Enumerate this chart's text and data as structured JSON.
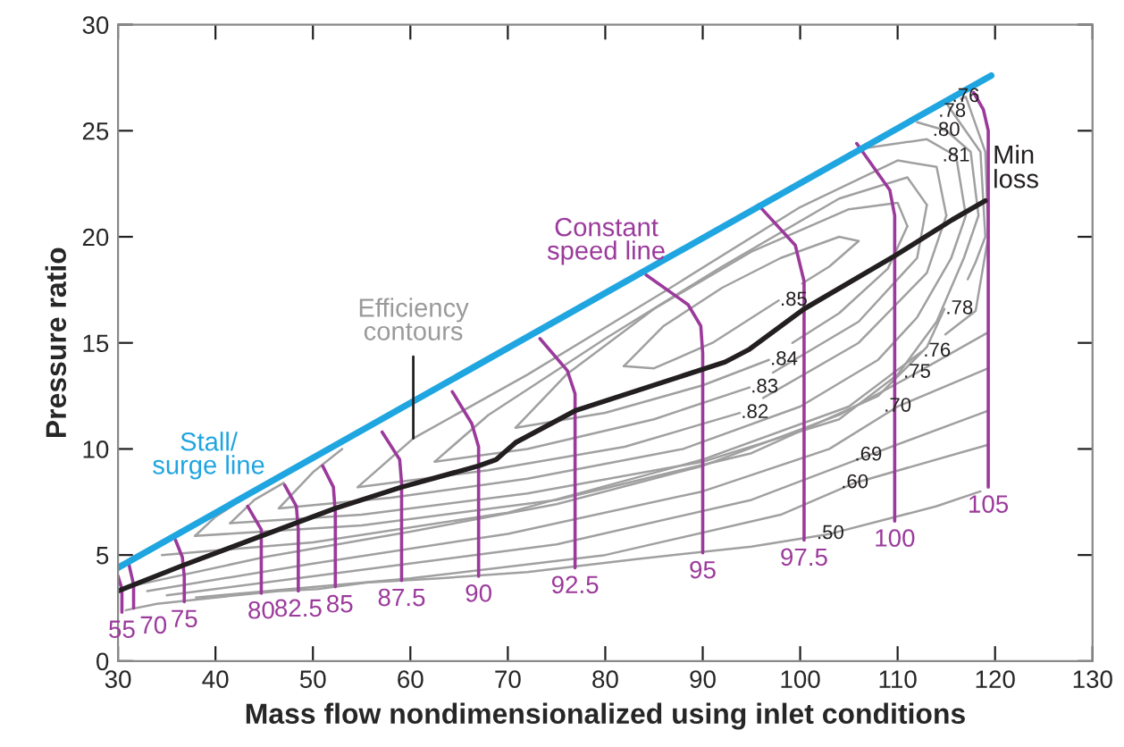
{
  "chart_data": {
    "type": "line",
    "xlabel": "Mass flow nondimensionalized using inlet conditions",
    "ylabel": "Pressure ratio",
    "xlim": [
      30,
      130
    ],
    "xticks": [
      30,
      40,
      50,
      60,
      70,
      80,
      90,
      100,
      110,
      120,
      130
    ],
    "ylim": [
      0,
      30
    ],
    "yticks": [
      0,
      5,
      10,
      15,
      20,
      25,
      30
    ],
    "grid": false,
    "series": [
      {
        "color": "#a0a0a0",
        "x": [
          81.9,
          86,
          92,
          98,
          104,
          106
        ],
        "values": [
          13.9,
          15.8,
          17.6,
          19.0,
          20.0,
          19.8
        ]
      },
      {
        "color": "#a0a0a0",
        "x": [
          81.9,
          85,
          91,
          97.8
        ],
        "values": [
          13.9,
          13.8,
          15.0,
          17.0
        ]
      },
      {
        "color": "#a0a0a0",
        "x": [
          100.2,
          103,
          106
        ],
        "values": [
          17.8,
          18.6,
          19.8
        ]
      },
      {
        "color": "#a0a0a0",
        "x": [
          70.8,
          76,
          85,
          95,
          105,
          110,
          111
        ],
        "values": [
          11.0,
          13.5,
          16.6,
          19.3,
          21.3,
          21.6,
          20.5
        ]
      },
      {
        "color": "#a0a0a0",
        "x": [
          70.8,
          80,
          90,
          96.8
        ],
        "values": [
          11.0,
          11.7,
          13.0,
          14.2
        ]
      },
      {
        "color": "#a0a0a0",
        "x": [
          99.2,
          104,
          109,
          111
        ],
        "values": [
          15.0,
          16.4,
          18.5,
          20.5
        ]
      },
      {
        "color": "#a0a0a0",
        "x": [
          62.5,
          68,
          80,
          92,
          104,
          111,
          113
        ],
        "values": [
          9.4,
          11.6,
          15.2,
          18.6,
          21.8,
          22.8,
          21.5
        ]
      },
      {
        "color": "#a0a0a0",
        "x": [
          62.5,
          72,
          85,
          94.8
        ],
        "values": [
          9.4,
          10.0,
          11.4,
          12.9
        ]
      },
      {
        "color": "#a0a0a0",
        "x": [
          97.2,
          106,
          112,
          113
        ],
        "values": [
          13.6,
          16.0,
          19.0,
          21.5
        ]
      },
      {
        "color": "#a0a0a0",
        "x": [
          54.6,
          60.3,
          72,
          86,
          100,
          110,
          114,
          115
        ],
        "values": [
          8.2,
          10.5,
          13.5,
          17.4,
          21.4,
          23.6,
          23.3,
          21.0
        ]
      },
      {
        "color": "#a0a0a0",
        "x": [
          54.6,
          68,
          82,
          93.8
        ],
        "values": [
          8.2,
          9.0,
          10.1,
          11.7
        ]
      },
      {
        "color": "#a0a0a0",
        "x": [
          96.2,
          106,
          113,
          115
        ],
        "values": [
          12.4,
          15.0,
          18.3,
          21.0
        ]
      },
      {
        "color": "#a0a0a0",
        "x": [
          46.5,
          50,
          53
        ],
        "values": [
          7.2,
          8.9,
          10.0
        ]
      },
      {
        "color": "#a0a0a0",
        "x": [
          46.5,
          58,
          72,
          88,
          100,
          108,
          112,
          115.5,
          117,
          116,
          113,
          107
        ],
        "values": [
          7.2,
          7.7,
          8.6,
          10.0,
          12.0,
          14.2,
          16.2,
          19.0,
          21.0,
          23.8,
          24.6,
          24.2
        ]
      },
      {
        "color": "#a0a0a0",
        "x": [
          41.5,
          44,
          47
        ],
        "values": [
          6.5,
          7.6,
          8.4
        ]
      },
      {
        "color": "#a0a0a0",
        "x": [
          41.5,
          55,
          72,
          90,
          104,
          110,
          114,
          116.8,
          118.3,
          117.5,
          115,
          112
        ],
        "values": [
          6.5,
          6.9,
          7.9,
          9.4,
          11.4,
          13.5,
          16.0,
          19.0,
          21.0,
          24.0,
          25.0,
          25.4
        ]
      },
      {
        "color": "#a0a0a0",
        "x": [
          37.9,
          40,
          43
        ],
        "values": [
          5.9,
          6.8,
          7.7
        ]
      },
      {
        "color": "#a0a0a0",
        "x": [
          37.9,
          55,
          75,
          95,
          108,
          113,
          114.8
        ],
        "values": [
          5.9,
          6.4,
          7.6,
          9.8,
          12.5,
          14.8,
          16.6
        ]
      },
      {
        "color": "#a0a0a0",
        "x": [
          117.2,
          118,
          119,
          118.5,
          115.6,
          115
        ],
        "values": [
          18.0,
          18.8,
          20.0,
          24.0,
          25.9,
          26.3
        ]
      },
      {
        "color": "#a0a0a0",
        "x": [
          34.5,
          50,
          70,
          90,
          105,
          112.5
        ],
        "values": [
          5.0,
          5.6,
          7.0,
          9.5,
          12.0,
          14.6
        ]
      },
      {
        "color": "#a0a0a0",
        "x": [
          114.9,
          118,
          119.3,
          119,
          117,
          116.5
        ],
        "values": [
          15.4,
          16.5,
          20.0,
          24.0,
          26.6,
          26.5
        ]
      },
      {
        "color": "#a0a0a0",
        "x": [
          32,
          45,
          60,
          75,
          90,
          104,
          112,
          119.3
        ],
        "values": [
          3.6,
          4.9,
          6.1,
          7.4,
          9.2,
          11.6,
          13.6,
          15.5
        ]
      },
      {
        "color": "#a0a0a0",
        "x": [
          33,
          50,
          70,
          90,
          103,
          110,
          119.3
        ],
        "values": [
          3.3,
          4.6,
          6.0,
          8.0,
          10.0,
          12.0,
          13.8
        ]
      },
      {
        "color": "#a0a0a0",
        "x": [
          35,
          55,
          75,
          95,
          107,
          119.3
        ],
        "values": [
          3.1,
          4.3,
          5.5,
          7.6,
          9.7,
          11.8
        ]
      },
      {
        "color": "#a0a0a0",
        "x": [
          38,
          60,
          80,
          98,
          105.6,
          119.3
        ],
        "values": [
          3.0,
          3.9,
          5.0,
          6.9,
          8.4,
          10.2
        ]
      },
      {
        "color": "#a0a0a0",
        "x": [
          30.8,
          34,
          40,
          46.5,
          50.5,
          55.5,
          63,
          72,
          83,
          95,
          103.1,
          114,
          118.5
        ],
        "values": [
          2.4,
          2.7,
          3.0,
          3.3,
          3.4,
          3.7,
          3.9,
          4.2,
          4.8,
          5.4,
          6.0,
          7.3,
          8.0
        ]
      },
      {
        "name": "55",
        "color": "#9b3a9b",
        "x": [
          30,
          30.4,
          30.4
        ],
        "values": [
          4.0,
          3.4,
          2.3
        ]
      },
      {
        "name": "70",
        "color": "#9b3a9b",
        "x": [
          31.1,
          31.6,
          31.6
        ],
        "values": [
          4.6,
          3.6,
          2.5
        ]
      },
      {
        "name": "75",
        "color": "#9b3a9b",
        "x": [
          35.9,
          36.6,
          36.8,
          36.8
        ],
        "values": [
          5.7,
          4.9,
          4.0,
          2.8
        ]
      },
      {
        "name": "80",
        "color": "#9b3a9b",
        "x": [
          43.3,
          44.7,
          44.7,
          44.7
        ],
        "values": [
          7.3,
          6.2,
          5.1,
          3.2
        ]
      },
      {
        "name": "82.5",
        "color": "#9b3a9b",
        "x": [
          47.1,
          48.3,
          48.5,
          48.5
        ],
        "values": [
          8.3,
          7.3,
          6.2,
          3.3
        ]
      },
      {
        "name": "85",
        "color": "#9b3a9b",
        "x": [
          51,
          52.1,
          52.3,
          52.3
        ],
        "values": [
          9.2,
          8.2,
          7.0,
          3.5
        ]
      },
      {
        "name": "87.5",
        "color": "#9b3a9b",
        "x": [
          57.1,
          58.9,
          59.1,
          59.1
        ],
        "values": [
          10.8,
          9.5,
          8.4,
          3.8
        ]
      },
      {
        "name": "90",
        "color": "#9b3a9b",
        "x": [
          64.3,
          66.3,
          67,
          67
        ],
        "values": [
          12.7,
          11.2,
          10.1,
          4.0
        ]
      },
      {
        "name": "92.5",
        "color": "#9b3a9b",
        "x": [
          73.3,
          76.1,
          76.9,
          76.9
        ],
        "values": [
          15.2,
          13.7,
          12.6,
          4.4
        ]
      },
      {
        "name": "95",
        "color": "#9b3a9b",
        "x": [
          84.2,
          88.5,
          89.8,
          90,
          90
        ],
        "values": [
          18.2,
          16.8,
          15.8,
          14.5,
          5.1
        ]
      },
      {
        "name": "97.5",
        "color": "#9b3a9b",
        "x": [
          95.7,
          99.5,
          100.4,
          100.4
        ],
        "values": [
          21.5,
          19.6,
          17.9,
          5.7
        ]
      },
      {
        "name": "100",
        "color": "#9b3a9b",
        "x": [
          105.8,
          109.2,
          109.7,
          109.7
        ],
        "values": [
          24.4,
          22.2,
          21.0,
          6.6
        ]
      },
      {
        "name": "105",
        "color": "#9b3a9b",
        "x": [
          117.8,
          118.8,
          119.3,
          119.3
        ],
        "values": [
          26.8,
          26.0,
          25.0,
          8.2
        ]
      },
      {
        "name": "Min\nloss",
        "color": "#231f20",
        "x": [
          30,
          36.6,
          44.7,
          52.3,
          59.1,
          67,
          68.8,
          70.8,
          76.9,
          92.3,
          94.8,
          100.4,
          109.7,
          115.6,
          119
        ],
        "values": [
          3.3,
          4.5,
          5.9,
          7.2,
          8.2,
          9.2,
          9.5,
          10.3,
          11.8,
          14.1,
          14.7,
          16.6,
          19.1,
          20.8,
          21.7
        ]
      },
      {
        "color": "#1fa5e0",
        "x": [
          30,
          119.6
        ],
        "values": [
          4.4,
          27.6
        ]
      }
    ],
    "annotations": [
      "Constant\nspeed line",
      {
        "text": "Efficiency\ncontours",
        "x": 60.3,
        "y": 10.5
      },
      "Stall/\nsurge line",
      {
        "text": ".85",
        "x": 97.8,
        "y": 17.0
      },
      {
        "text": ".84",
        "x": 96.8,
        "y": 14.2
      },
      {
        "text": ".83",
        "x": 94.8,
        "y": 12.9
      },
      {
        "text": ".82",
        "x": 93.8,
        "y": 11.7
      },
      {
        "text": ".76",
        "x": 117,
        "y": 26.6
      },
      {
        "text": ".78",
        "x": 115.6,
        "y": 25.9
      },
      {
        "text": ".80",
        "x": 115,
        "y": 25.0
      },
      {
        "text": ".81",
        "x": 116,
        "y": 23.8
      },
      {
        "text": ".78",
        "x": 114.8,
        "y": 16.6
      },
      {
        "text": ".76",
        "x": 112.5,
        "y": 14.6
      },
      {
        "text": ".75",
        "x": 112,
        "y": 13.6
      },
      {
        "text": ".70",
        "x": 110,
        "y": 12.0
      },
      {
        "text": ".69",
        "x": 107,
        "y": 9.7
      },
      {
        "text": ".60",
        "x": 105.6,
        "y": 8.4
      },
      {
        "text": ".50",
        "x": 103.1,
        "y": 6.0
      }
    ]
  }
}
